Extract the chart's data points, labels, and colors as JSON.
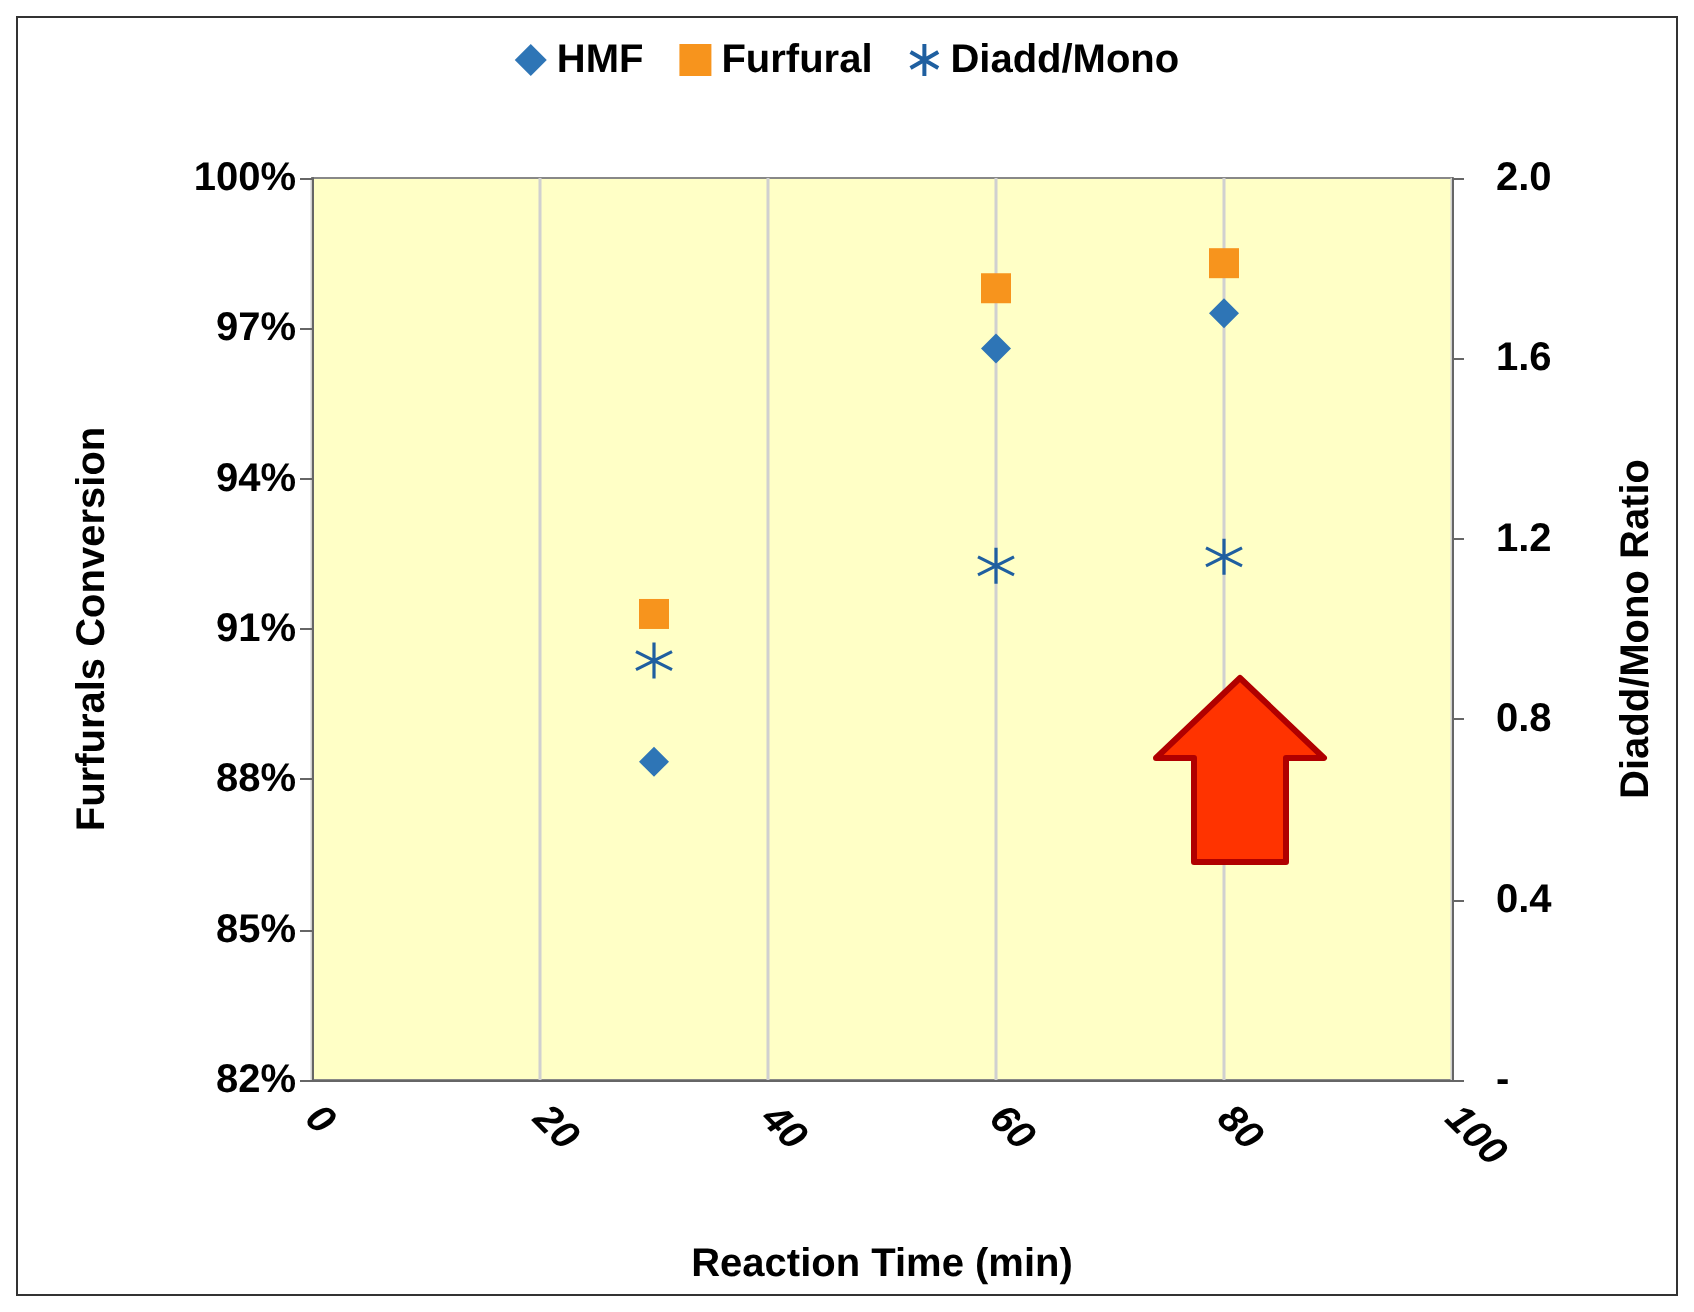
{
  "chart_data": {
    "type": "scatter",
    "xlabel": "Reaction Time (min)",
    "ylabel": "Furfurals Conversion",
    "y2label": "Diadd/Mono Ratio",
    "x": [
      30,
      60,
      80
    ],
    "xlim": [
      0,
      100
    ],
    "xticks": [
      0,
      20,
      40,
      60,
      80,
      100
    ],
    "ylim": [
      82,
      100
    ],
    "yticks": [
      {
        "value": 82,
        "label": "82%"
      },
      {
        "value": 85,
        "label": "85%"
      },
      {
        "value": 88,
        "label": "88%"
      },
      {
        "value": 91,
        "label": "91%"
      },
      {
        "value": 94,
        "label": "94%"
      },
      {
        "value": 97,
        "label": "97%"
      },
      {
        "value": 100,
        "label": "100%"
      }
    ],
    "y2lim": [
      0,
      2
    ],
    "y2ticks": [
      {
        "value": 0,
        "label": "-"
      },
      0.4,
      0.8,
      1.2,
      1.6,
      {
        "value": 2,
        "label": "2.0"
      }
    ],
    "grid": "x",
    "legend": "top",
    "series": [
      {
        "name": "HMF",
        "color": "#2e75b6",
        "marker": "diamond",
        "values": [
          88.35,
          96.6,
          97.3
        ]
      },
      {
        "name": "Furfural",
        "color": "#f7941d",
        "marker": "square",
        "values": [
          91.3,
          97.8,
          98.3
        ]
      },
      {
        "name": "Diadd/Mono",
        "color": "#1f5fa0",
        "marker": "cross",
        "axis": "y2",
        "values": [
          0.93,
          1.14,
          1.16
        ]
      }
    ]
  }
}
